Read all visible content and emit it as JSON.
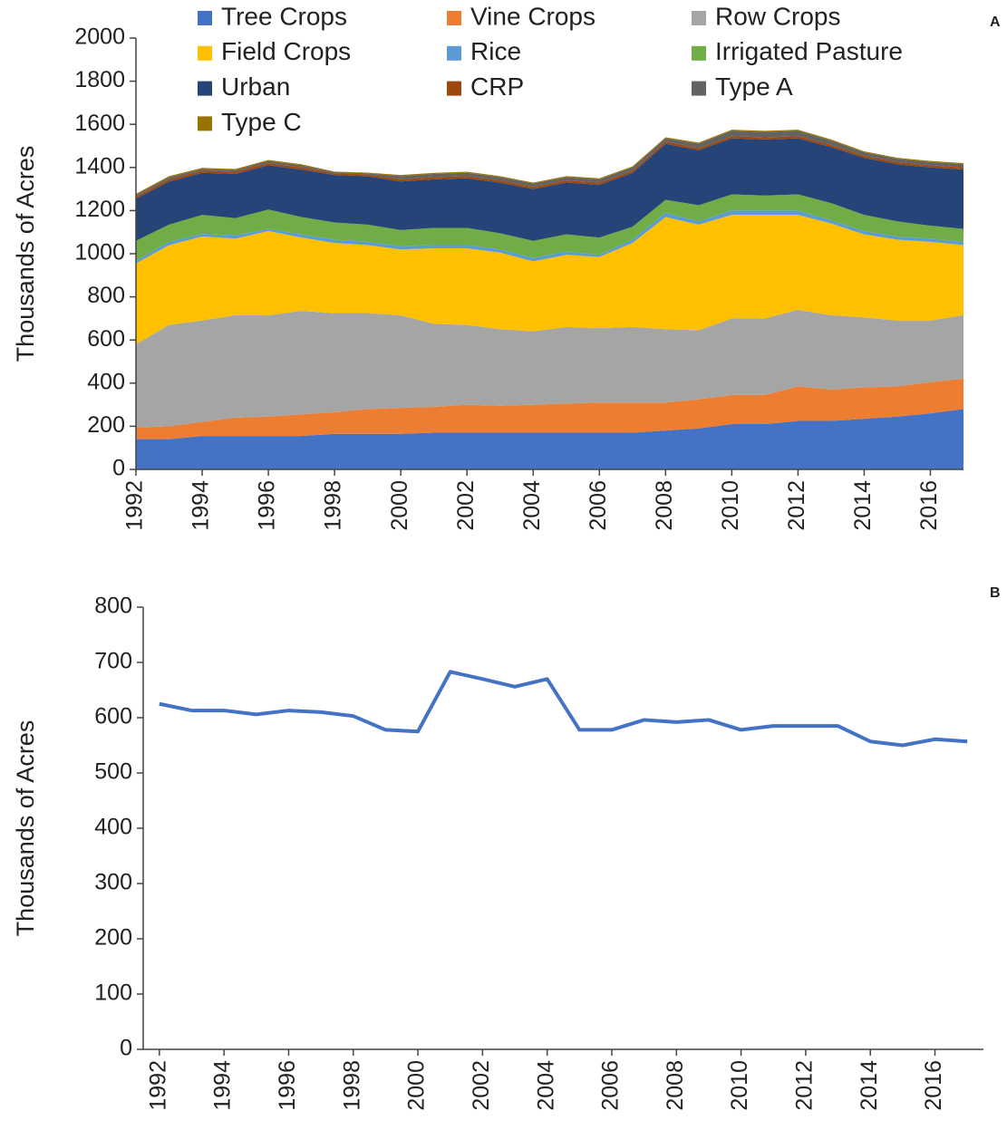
{
  "chart_data": [
    {
      "type": "area_stacked",
      "panel_label": "A",
      "y_label": "Thousands of Acres",
      "x": [
        1992,
        1993,
        1994,
        1995,
        1996,
        1997,
        1998,
        1999,
        2000,
        2001,
        2002,
        2003,
        2004,
        2005,
        2006,
        2007,
        2008,
        2009,
        2010,
        2011,
        2012,
        2013,
        2014,
        2015,
        2016,
        2017
      ],
      "xlim": [
        1992,
        2017
      ],
      "xticks": [
        1992,
        1994,
        1996,
        1998,
        2000,
        2002,
        2004,
        2006,
        2008,
        2010,
        2012,
        2014,
        2016
      ],
      "ylim": [
        0,
        2000
      ],
      "yticks": [
        0,
        200,
        400,
        600,
        800,
        1000,
        1200,
        1400,
        1600,
        1800,
        2000
      ],
      "series": [
        {
          "name": "Tree Crops",
          "color": "#4472c4",
          "values": [
            140,
            140,
            155,
            155,
            155,
            155,
            165,
            165,
            165,
            170,
            170,
            170,
            170,
            170,
            170,
            170,
            180,
            190,
            210,
            210,
            225,
            225,
            235,
            245,
            260,
            280
          ]
        },
        {
          "name": "Vine Crops",
          "color": "#ed7d31",
          "values": [
            55,
            60,
            65,
            85,
            90,
            100,
            100,
            115,
            120,
            120,
            130,
            125,
            130,
            135,
            140,
            140,
            130,
            135,
            135,
            135,
            160,
            145,
            145,
            140,
            145,
            140
          ]
        },
        {
          "name": "Row Crops",
          "color": "#a5a5a5",
          "values": [
            385,
            470,
            470,
            475,
            470,
            480,
            460,
            445,
            430,
            385,
            370,
            355,
            340,
            355,
            345,
            350,
            340,
            320,
            355,
            355,
            355,
            345,
            325,
            305,
            285,
            295
          ]
        },
        {
          "name": "Field Crops",
          "color": "#ffc000",
          "values": [
            375,
            370,
            390,
            355,
            390,
            340,
            325,
            315,
            305,
            350,
            355,
            355,
            325,
            335,
            330,
            390,
            520,
            490,
            480,
            480,
            440,
            425,
            385,
            375,
            365,
            325
          ]
        },
        {
          "name": "Rice",
          "color": "#5b9bd5",
          "values": [
            12,
            15,
            12,
            15,
            10,
            15,
            15,
            15,
            15,
            15,
            15,
            15,
            15,
            15,
            10,
            15,
            20,
            15,
            20,
            20,
            20,
            15,
            15,
            15,
            15,
            15
          ]
        },
        {
          "name": "Irrigated Pasture",
          "color": "#70ad47",
          "values": [
            93,
            80,
            88,
            80,
            90,
            80,
            80,
            80,
            75,
            80,
            80,
            75,
            80,
            80,
            80,
            60,
            60,
            75,
            75,
            70,
            75,
            80,
            75,
            70,
            60,
            60
          ]
        },
        {
          "name": "Urban",
          "color": "#264478",
          "values": [
            195,
            200,
            195,
            205,
            205,
            220,
            220,
            225,
            225,
            225,
            230,
            235,
            240,
            240,
            245,
            250,
            260,
            255,
            260,
            260,
            260,
            260,
            265,
            265,
            270,
            275
          ]
        },
        {
          "name": "CRP",
          "color": "#9e480e",
          "values": [
            10,
            10,
            10,
            10,
            10,
            10,
            8,
            8,
            10,
            10,
            10,
            10,
            10,
            10,
            10,
            10,
            10,
            10,
            10,
            10,
            10,
            10,
            10,
            10,
            10,
            10
          ]
        },
        {
          "name": "Type A",
          "color": "#636363",
          "values": [
            8,
            10,
            8,
            8,
            10,
            10,
            5,
            5,
            15,
            15,
            15,
            15,
            15,
            15,
            15,
            15,
            15,
            20,
            25,
            25,
            25,
            20,
            15,
            15,
            15,
            15
          ]
        },
        {
          "name": "Type C",
          "color": "#997300",
          "values": [
            5,
            5,
            5,
            5,
            5,
            5,
            3,
            3,
            5,
            5,
            5,
            5,
            5,
            5,
            5,
            5,
            5,
            5,
            5,
            5,
            5,
            5,
            5,
            5,
            5,
            5
          ]
        }
      ]
    },
    {
      "type": "line",
      "panel_label": "B",
      "y_label": "Thousands of Acres",
      "x": [
        1992,
        1993,
        1994,
        1995,
        1996,
        1997,
        1998,
        1999,
        2000,
        2001,
        2002,
        2003,
        2004,
        2005,
        2006,
        2007,
        2008,
        2009,
        2010,
        2011,
        2012,
        2013,
        2014,
        2015,
        2016,
        2017
      ],
      "xlim": [
        1991.5,
        2017.5
      ],
      "xticks": [
        1992,
        1994,
        1996,
        1998,
        2000,
        2002,
        2004,
        2006,
        2008,
        2010,
        2012,
        2014,
        2016
      ],
      "ylim": [
        0,
        800
      ],
      "yticks": [
        0,
        100,
        200,
        300,
        400,
        500,
        600,
        700,
        800
      ],
      "color": "#4472c4",
      "values": [
        625,
        613,
        613,
        606,
        613,
        610,
        603,
        578,
        575,
        683,
        670,
        656,
        670,
        578,
        578,
        596,
        592,
        596,
        578,
        585,
        585,
        585,
        557,
        550,
        561,
        557
      ]
    }
  ]
}
